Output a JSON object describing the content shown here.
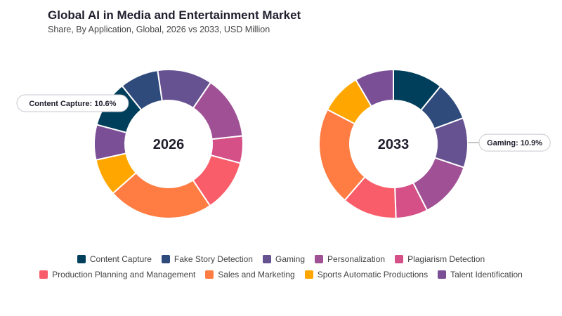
{
  "title": "Global AI in Media and Entertainment Market",
  "subtitle": "Share, By Application, Global, 2026 vs 2033, USD Million",
  "chart_data": {
    "type": "pie",
    "style": "donut",
    "categories": [
      "Content Capture",
      "Fake Story Detection",
      "Gaming",
      "Personalization",
      "Plagiarism Detection",
      "Production Planning and Management",
      "Sales and Marketing",
      "Sports Automatic Productions",
      "Talent Identification"
    ],
    "colors": [
      "#003f5c",
      "#2f4b7c",
      "#665191",
      "#a05195",
      "#d45087",
      "#f95d6a",
      "#ff7c43",
      "#ffa600",
      "#7a4f96"
    ],
    "series": [
      {
        "name": "2026",
        "values": [
          10.6,
          8.8,
          12.5,
          14.4,
          6.2,
          12.0,
          24.0,
          8.5,
          8.0
        ]
      },
      {
        "name": "2033",
        "values": [
          11.0,
          8.5,
          10.9,
          12.5,
          7.0,
          12.0,
          21.5,
          9.0,
          8.5
        ]
      }
    ],
    "callouts": [
      {
        "chart": "2026",
        "text": "Content Capture: 10.6%"
      },
      {
        "chart": "2033",
        "text": "Gaming: 10.9%"
      }
    ],
    "legend": "bottom"
  }
}
